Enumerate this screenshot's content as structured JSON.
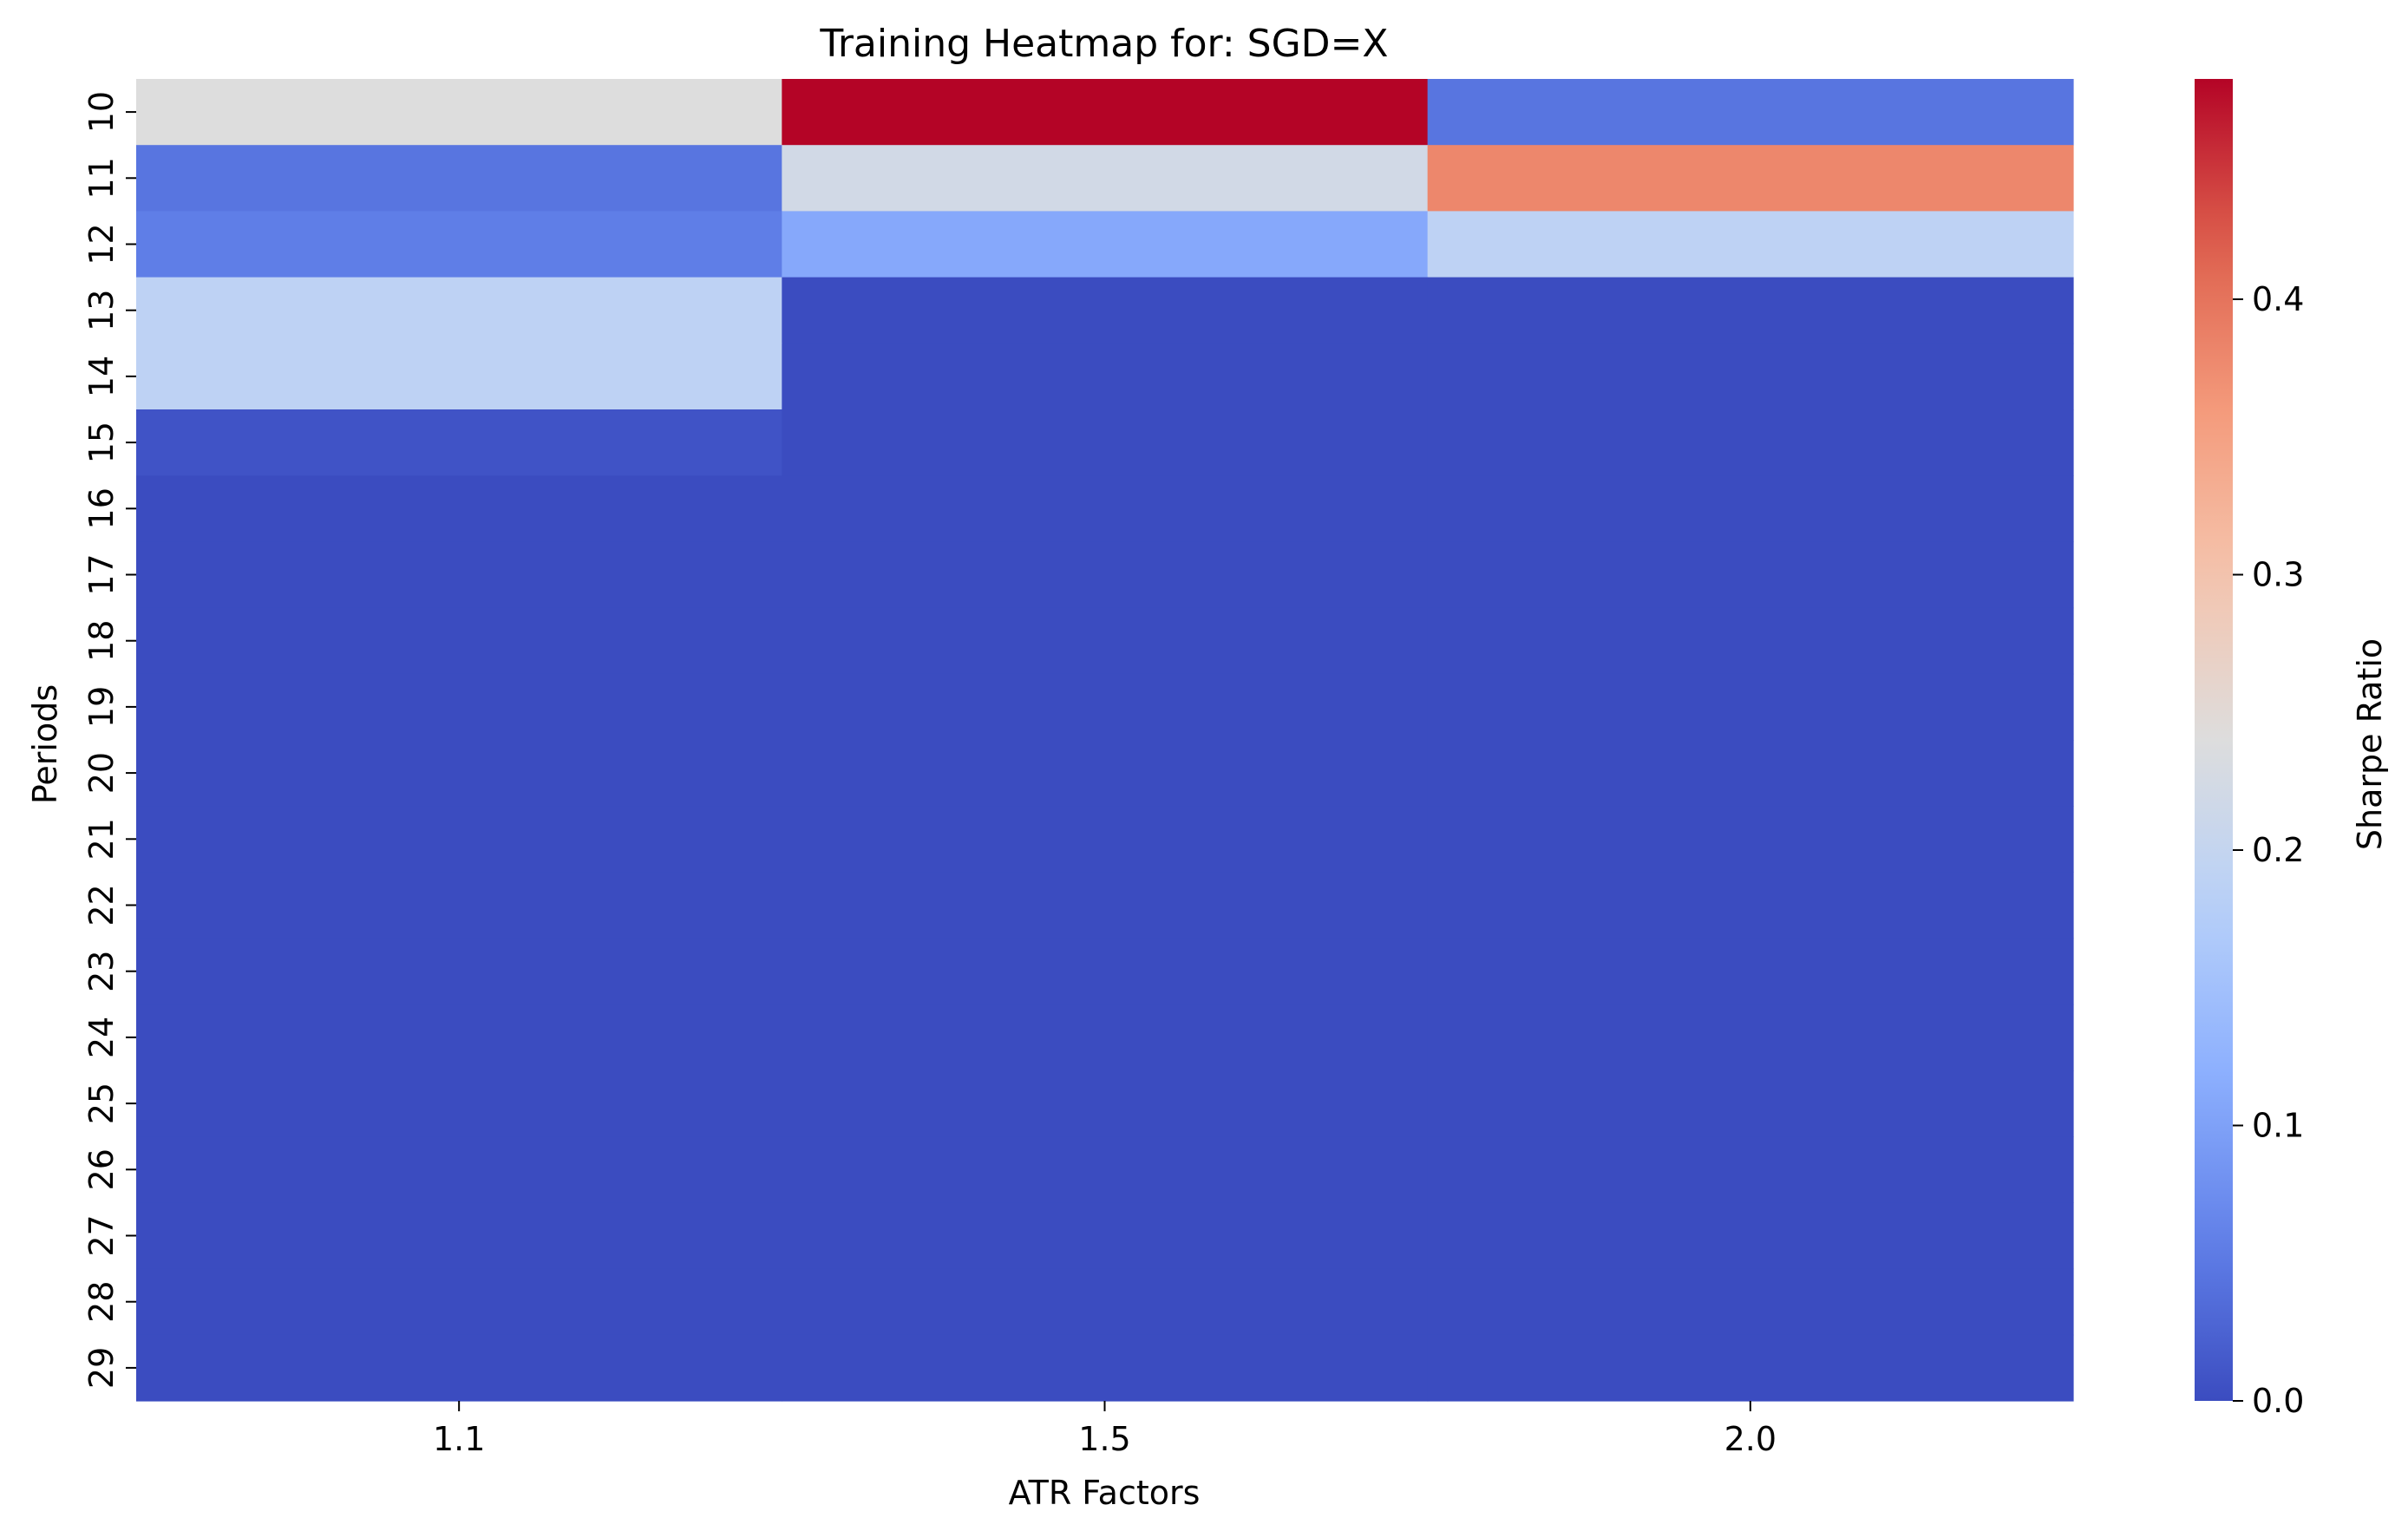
{
  "chart_data": {
    "type": "heatmap",
    "title": "Training Heatmap for: SGD=X",
    "xlabel": "ATR Factors",
    "ylabel": "Periods",
    "colorbar_label": "Sharpe Ratio",
    "colormap": "coolwarm",
    "x_categories": [
      "1.1",
      "1.5",
      "2.0"
    ],
    "y_categories": [
      "10",
      "11",
      "12",
      "13",
      "14",
      "15",
      "16",
      "17",
      "18",
      "19",
      "20",
      "21",
      "22",
      "23",
      "24",
      "25",
      "26",
      "27",
      "28",
      "29"
    ],
    "values": [
      [
        0.24,
        0.48,
        0.045
      ],
      [
        0.045,
        0.22,
        0.38
      ],
      [
        0.055,
        0.11,
        0.19
      ],
      [
        0.19,
        0.0,
        0.0
      ],
      [
        0.19,
        0.0,
        0.0
      ],
      [
        0.008,
        0.0,
        0.0
      ],
      [
        0.0,
        0.0,
        0.0
      ],
      [
        0.0,
        0.0,
        0.0
      ],
      [
        0.0,
        0.0,
        0.0
      ],
      [
        0.0,
        0.0,
        0.0
      ],
      [
        0.0,
        0.0,
        0.0
      ],
      [
        0.0,
        0.0,
        0.0
      ],
      [
        0.0,
        0.0,
        0.0
      ],
      [
        0.0,
        0.0,
        0.0
      ],
      [
        0.0,
        0.0,
        0.0
      ],
      [
        0.0,
        0.0,
        0.0
      ],
      [
        0.0,
        0.0,
        0.0
      ],
      [
        0.0,
        0.0,
        0.0
      ],
      [
        0.0,
        0.0,
        0.0
      ],
      [
        0.0,
        0.0,
        0.0
      ]
    ],
    "vmin": 0.0,
    "vmax": 0.48,
    "colorbar_ticks": [
      0.0,
      0.1,
      0.2,
      0.3,
      0.4
    ],
    "colorbar_tick_labels": [
      "0.0",
      "0.1",
      "0.2",
      "0.3",
      "0.4"
    ],
    "grid": false
  }
}
